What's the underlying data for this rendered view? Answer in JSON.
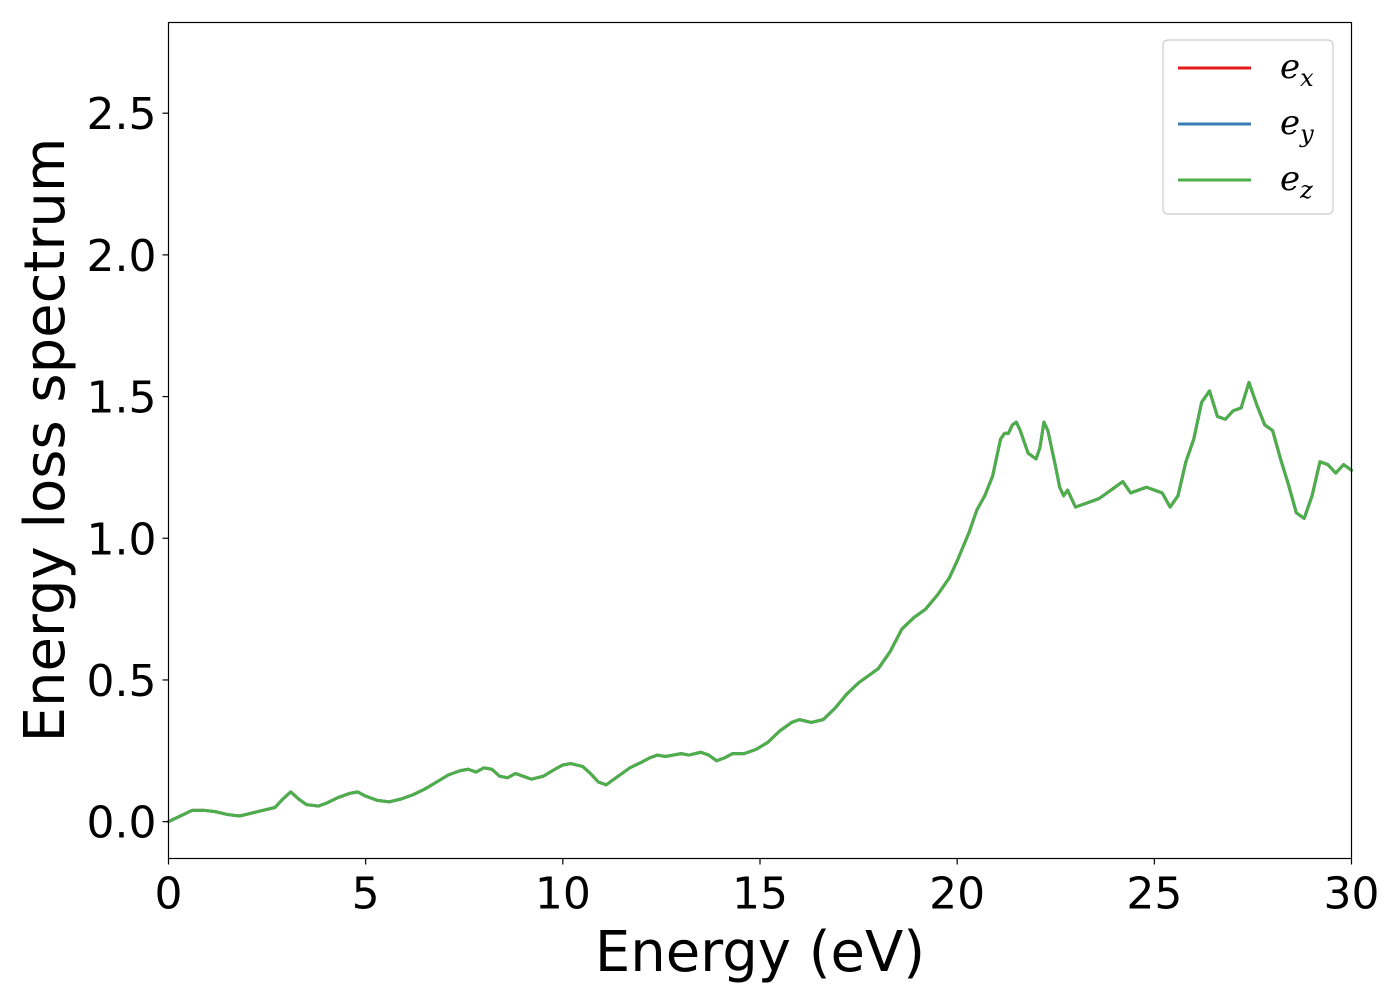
{
  "chart_data": {
    "type": "line",
    "title": "",
    "xlabel": "Energy (eV)",
    "ylabel": "Energy loss spectrum",
    "xlim": [
      0,
      30
    ],
    "ylim": [
      -0.13,
      2.82
    ],
    "xticks": [
      0,
      5,
      10,
      15,
      20,
      25,
      30
    ],
    "xtick_labels": [
      "0",
      "5",
      "10",
      "15",
      "20",
      "25",
      "30"
    ],
    "yticks": [
      0.0,
      0.5,
      1.0,
      1.5,
      2.0,
      2.5
    ],
    "ytick_labels": [
      "0.0",
      "0.5",
      "1.0",
      "1.5",
      "2.0",
      "2.5"
    ],
    "grid": false,
    "legend_position": "top-right",
    "series": [
      {
        "name": "e_x",
        "label_base": "e",
        "label_sub": "x",
        "color": "#e41a1c",
        "x": [
          0,
          0.3,
          0.6,
          0.9,
          1.2,
          1.5,
          1.8,
          2.1,
          2.4,
          2.7,
          2.9,
          3.1,
          3.3,
          3.5,
          3.8,
          4.0,
          4.3,
          4.6,
          4.8,
          5.0,
          5.3,
          5.6,
          5.9,
          6.2,
          6.5,
          6.8,
          7.1,
          7.4,
          7.6,
          7.8,
          8.0,
          8.2,
          8.4,
          8.6,
          8.8,
          9.0,
          9.2,
          9.5,
          9.8,
          10.0,
          10.2,
          10.5,
          10.7,
          10.9,
          11.1,
          11.4,
          11.7,
          12.0,
          12.2,
          12.4,
          12.6,
          12.8,
          13.0,
          13.2,
          13.5,
          13.7,
          13.9,
          14.1,
          14.3,
          14.6,
          14.9,
          15.2,
          15.5,
          15.8,
          16.0,
          16.3,
          16.6,
          16.9,
          17.2,
          17.5,
          17.8,
          18.0,
          18.3,
          18.6,
          18.9,
          19.2,
          19.5,
          19.8,
          20.0,
          20.3,
          20.5,
          20.7,
          20.9,
          21.1,
          21.2,
          21.3,
          21.4,
          21.5,
          21.6,
          21.8,
          22.0,
          22.1,
          22.2,
          22.3,
          22.5,
          22.6,
          22.7,
          22.8,
          22.9,
          23.0,
          23.2,
          23.4,
          23.6,
          23.8,
          24.0,
          24.2,
          24.4,
          24.6,
          24.8,
          25.0,
          25.2,
          25.4,
          25.6,
          25.8,
          26.0,
          26.2,
          26.4,
          26.6,
          26.8,
          27.0,
          27.2,
          27.4,
          27.6,
          27.8,
          28.0,
          28.2,
          28.4,
          28.6,
          28.8,
          29.0,
          29.2,
          29.4,
          29.6,
          29.8,
          30.0
        ],
        "y": [
          0.0,
          0.02,
          0.04,
          0.04,
          0.035,
          0.025,
          0.02,
          0.03,
          0.04,
          0.05,
          0.08,
          0.105,
          0.08,
          0.06,
          0.055,
          0.065,
          0.085,
          0.1,
          0.105,
          0.09,
          0.075,
          0.07,
          0.08,
          0.095,
          0.115,
          0.14,
          0.165,
          0.18,
          0.185,
          0.175,
          0.19,
          0.185,
          0.16,
          0.155,
          0.17,
          0.16,
          0.15,
          0.16,
          0.185,
          0.2,
          0.205,
          0.195,
          0.17,
          0.14,
          0.13,
          0.16,
          0.19,
          0.21,
          0.225,
          0.235,
          0.23,
          0.235,
          0.24,
          0.235,
          0.245,
          0.235,
          0.215,
          0.225,
          0.24,
          0.24,
          0.255,
          0.28,
          0.32,
          0.35,
          0.36,
          0.35,
          0.36,
          0.4,
          0.45,
          0.49,
          0.52,
          0.54,
          0.6,
          0.68,
          0.72,
          0.75,
          0.8,
          0.86,
          0.92,
          1.02,
          1.1,
          1.15,
          1.22,
          1.35,
          1.37,
          1.37,
          1.4,
          1.41,
          1.38,
          1.3,
          1.28,
          1.32,
          1.41,
          1.38,
          1.25,
          1.18,
          1.15,
          1.17,
          1.14,
          1.11,
          1.12,
          1.13,
          1.14,
          1.16,
          1.18,
          1.2,
          1.16,
          1.17,
          1.18,
          1.17,
          1.16,
          1.11,
          1.15,
          1.27,
          1.35,
          1.48,
          1.52,
          1.43,
          1.42,
          1.45,
          1.46,
          1.55,
          1.47,
          1.4,
          1.38,
          1.28,
          1.19,
          1.09,
          1.07,
          1.15,
          1.27,
          1.26,
          1.23,
          1.26,
          1.24
        ]
      },
      {
        "name": "e_y",
        "label_base": "e",
        "label_sub": "y",
        "color": "#377eb8",
        "x": [
          0,
          0.3,
          0.6,
          0.9,
          1.2,
          1.5,
          1.8,
          2.1,
          2.4,
          2.7,
          2.9,
          3.1,
          3.3,
          3.5,
          3.8,
          4.0,
          4.3,
          4.6,
          4.8,
          5.0,
          5.3,
          5.6,
          5.9,
          6.2,
          6.5,
          6.8,
          7.1,
          7.4,
          7.6,
          7.8,
          8.0,
          8.2,
          8.4,
          8.6,
          8.8,
          9.0,
          9.2,
          9.5,
          9.8,
          10.0,
          10.2,
          10.5,
          10.7,
          10.9,
          11.1,
          11.4,
          11.7,
          12.0,
          12.2,
          12.4,
          12.6,
          12.8,
          13.0,
          13.2,
          13.5,
          13.7,
          13.9,
          14.1,
          14.3,
          14.6,
          14.9,
          15.2,
          15.5,
          15.8,
          16.0,
          16.3,
          16.6,
          16.9,
          17.2,
          17.5,
          17.8,
          18.0,
          18.3,
          18.6,
          18.9,
          19.2,
          19.5,
          19.8,
          20.0,
          20.3,
          20.5,
          20.7,
          20.9,
          21.1,
          21.2,
          21.3,
          21.4,
          21.5,
          21.6,
          21.8,
          22.0,
          22.1,
          22.2,
          22.3,
          22.5,
          22.6,
          22.7,
          22.8,
          22.9,
          23.0,
          23.2,
          23.4,
          23.6,
          23.8,
          24.0,
          24.2,
          24.4,
          24.6,
          24.8,
          25.0,
          25.2,
          25.4,
          25.6,
          25.8,
          26.0,
          26.2,
          26.4,
          26.6,
          26.8,
          27.0,
          27.2,
          27.4,
          27.6,
          27.8,
          28.0,
          28.2,
          28.4,
          28.6,
          28.8,
          29.0,
          29.2,
          29.4,
          29.6,
          29.8,
          30.0
        ],
        "y": [
          0.0,
          0.02,
          0.04,
          0.04,
          0.035,
          0.025,
          0.02,
          0.03,
          0.04,
          0.05,
          0.08,
          0.105,
          0.08,
          0.06,
          0.055,
          0.065,
          0.085,
          0.1,
          0.105,
          0.09,
          0.075,
          0.07,
          0.08,
          0.095,
          0.115,
          0.14,
          0.165,
          0.18,
          0.185,
          0.175,
          0.19,
          0.185,
          0.16,
          0.155,
          0.17,
          0.16,
          0.15,
          0.16,
          0.185,
          0.2,
          0.205,
          0.195,
          0.17,
          0.14,
          0.13,
          0.16,
          0.19,
          0.21,
          0.225,
          0.235,
          0.23,
          0.235,
          0.24,
          0.235,
          0.245,
          0.235,
          0.215,
          0.225,
          0.24,
          0.24,
          0.255,
          0.28,
          0.32,
          0.35,
          0.36,
          0.35,
          0.36,
          0.4,
          0.45,
          0.49,
          0.52,
          0.54,
          0.6,
          0.68,
          0.72,
          0.75,
          0.8,
          0.86,
          0.92,
          1.02,
          1.1,
          1.15,
          1.22,
          1.35,
          1.37,
          1.37,
          1.4,
          1.41,
          1.38,
          1.3,
          1.28,
          1.32,
          1.41,
          1.38,
          1.25,
          1.18,
          1.15,
          1.17,
          1.14,
          1.11,
          1.12,
          1.13,
          1.14,
          1.16,
          1.18,
          1.2,
          1.16,
          1.17,
          1.18,
          1.17,
          1.16,
          1.11,
          1.15,
          1.27,
          1.35,
          1.48,
          1.52,
          1.43,
          1.42,
          1.45,
          1.46,
          1.55,
          1.47,
          1.4,
          1.38,
          1.28,
          1.19,
          1.09,
          1.07,
          1.15,
          1.27,
          1.26,
          1.23,
          1.26,
          1.24
        ]
      },
      {
        "name": "e_z",
        "label_base": "e",
        "label_sub": "z",
        "color": "#4daf4a",
        "x": [
          0,
          0.3,
          0.6,
          0.9,
          1.2,
          1.5,
          1.8,
          2.1,
          2.4,
          2.7,
          2.9,
          3.1,
          3.3,
          3.5,
          3.8,
          4.0,
          4.3,
          4.6,
          4.8,
          5.0,
          5.3,
          5.6,
          5.9,
          6.2,
          6.5,
          6.8,
          7.1,
          7.4,
          7.6,
          7.8,
          8.0,
          8.2,
          8.4,
          8.6,
          8.8,
          9.0,
          9.2,
          9.5,
          9.8,
          10.0,
          10.2,
          10.5,
          10.7,
          10.9,
          11.1,
          11.4,
          11.7,
          12.0,
          12.2,
          12.4,
          12.6,
          12.8,
          13.0,
          13.2,
          13.5,
          13.7,
          13.9,
          14.1,
          14.3,
          14.6,
          14.9,
          15.2,
          15.5,
          15.8,
          16.0,
          16.3,
          16.6,
          16.9,
          17.2,
          17.5,
          17.8,
          18.0,
          18.3,
          18.6,
          18.9,
          19.2,
          19.5,
          19.8,
          20.0,
          20.3,
          20.5,
          20.7,
          20.9,
          21.1,
          21.2,
          21.3,
          21.4,
          21.5,
          21.6,
          21.8,
          22.0,
          22.1,
          22.2,
          22.3,
          22.5,
          22.6,
          22.7,
          22.8,
          22.9,
          23.0,
          23.2,
          23.4,
          23.6,
          23.8,
          24.0,
          24.2,
          24.4,
          24.6,
          24.8,
          25.0,
          25.2,
          25.4,
          25.6,
          25.8,
          26.0,
          26.2,
          26.4,
          26.6,
          26.8,
          27.0,
          27.2,
          27.4,
          27.6,
          27.8,
          28.0,
          28.2,
          28.4,
          28.6,
          28.8,
          29.0,
          29.2,
          29.4,
          29.6,
          29.8,
          30.0
        ],
        "y": [
          0.0,
          0.02,
          0.04,
          0.04,
          0.035,
          0.025,
          0.02,
          0.03,
          0.04,
          0.05,
          0.08,
          0.105,
          0.08,
          0.06,
          0.055,
          0.065,
          0.085,
          0.1,
          0.105,
          0.09,
          0.075,
          0.07,
          0.08,
          0.095,
          0.115,
          0.14,
          0.165,
          0.18,
          0.185,
          0.175,
          0.19,
          0.185,
          0.16,
          0.155,
          0.17,
          0.16,
          0.15,
          0.16,
          0.185,
          0.2,
          0.205,
          0.195,
          0.17,
          0.14,
          0.13,
          0.16,
          0.19,
          0.21,
          0.225,
          0.235,
          0.23,
          0.235,
          0.24,
          0.235,
          0.245,
          0.235,
          0.215,
          0.225,
          0.24,
          0.24,
          0.255,
          0.28,
          0.32,
          0.35,
          0.36,
          0.35,
          0.36,
          0.4,
          0.45,
          0.49,
          0.52,
          0.54,
          0.6,
          0.68,
          0.72,
          0.75,
          0.8,
          0.86,
          0.92,
          1.02,
          1.1,
          1.15,
          1.22,
          1.35,
          1.37,
          1.37,
          1.4,
          1.41,
          1.38,
          1.3,
          1.28,
          1.32,
          1.41,
          1.38,
          1.25,
          1.18,
          1.15,
          1.17,
          1.14,
          1.11,
          1.12,
          1.13,
          1.14,
          1.16,
          1.18,
          1.2,
          1.16,
          1.17,
          1.18,
          1.17,
          1.16,
          1.11,
          1.15,
          1.27,
          1.35,
          1.48,
          1.52,
          1.43,
          1.42,
          1.45,
          1.46,
          1.55,
          1.47,
          1.4,
          1.38,
          1.28,
          1.19,
          1.09,
          1.07,
          1.15,
          1.27,
          1.26,
          1.23,
          1.26,
          1.24
        ]
      }
    ]
  }
}
